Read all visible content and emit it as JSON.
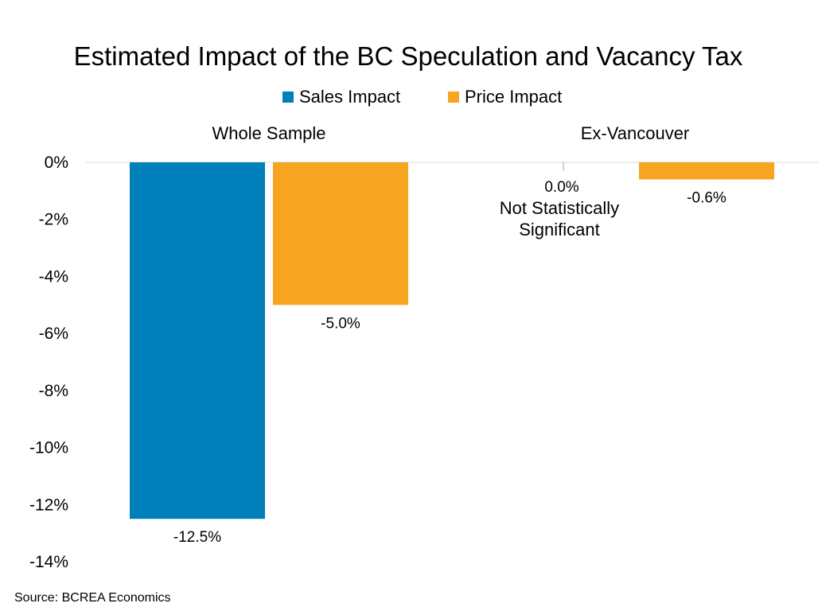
{
  "chart_data": {
    "type": "bar",
    "title": "Estimated Impact of the BC Speculation and Vacancy Tax",
    "categories": [
      "Whole Sample",
      "Ex-Vancouver"
    ],
    "series": [
      {
        "name": "Sales Impact",
        "color": "#0080bb",
        "values": [
          -12.5,
          0.0
        ],
        "labels": [
          "-12.5%",
          "0.0%"
        ]
      },
      {
        "name": "Price Impact",
        "color": "#f7a521",
        "values": [
          -5.0,
          -0.6
        ],
        "labels": [
          "-5.0%",
          "-0.6%"
        ]
      }
    ],
    "ylim": [
      -14,
      0
    ],
    "yticks": [
      0,
      -2,
      -4,
      -6,
      -8,
      -10,
      -12,
      -14
    ],
    "ytick_labels": [
      "0%",
      "-2%",
      "-4%",
      "-6%",
      "-8%",
      "-10%",
      "-12%",
      "-14%"
    ],
    "annotations": [
      {
        "text": "Not Statistically",
        "category": "Ex-Vancouver",
        "series": "Sales Impact"
      },
      {
        "text": "Significant",
        "category": "Ex-Vancouver",
        "series": "Sales Impact"
      }
    ],
    "legend_position": "top",
    "grid": false,
    "source": "Source: BCREA Economics"
  }
}
